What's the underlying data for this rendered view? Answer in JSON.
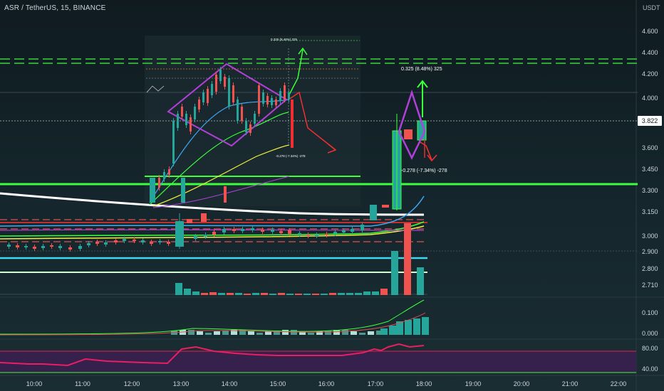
{
  "header": {
    "symbol": "ASR / TetherUS, 15, BINANCE"
  },
  "axis": {
    "unit": "USDT",
    "price_ticks": [
      {
        "value": 4.6,
        "label": "4.600"
      },
      {
        "value": 4.4,
        "label": "4.400"
      },
      {
        "value": 4.2,
        "label": "4.200"
      },
      {
        "value": 4.0,
        "label": "4.000"
      },
      {
        "value": 3.8,
        "label": "3.800"
      },
      {
        "value": 3.6,
        "label": "3.600"
      },
      {
        "value": 3.45,
        "label": "3.450"
      },
      {
        "value": 3.3,
        "label": "3.300"
      },
      {
        "value": 3.15,
        "label": "3.150"
      },
      {
        "value": 3.0,
        "label": "3.000"
      },
      {
        "value": 2.9,
        "label": "2.900"
      },
      {
        "value": 2.8,
        "label": "2.800"
      },
      {
        "value": 2.71,
        "label": "2.710"
      }
    ],
    "current_price": "3.822",
    "time_ticks": [
      "10:00",
      "11:00",
      "12:00",
      "13:00",
      "14:00",
      "15:00",
      "16:00",
      "17:00",
      "18:00",
      "19:00",
      "20:00",
      "21:00",
      "22:00"
    ],
    "indicator1_ticks": [
      "0.100",
      "0.000"
    ],
    "indicator2_ticks": [
      "80.00",
      "40.00"
    ]
  },
  "annotations": {
    "up_target": "0.325 (8.48%) 325",
    "down_target": "-0.278 (-7.34%) -278",
    "inset_up_target": "0.325 (8.48%) 325",
    "inset_down_target": "-0.278 (-7.34%) -278"
  },
  "colors": {
    "up_candle": "#26a69a",
    "down_candle": "#ef5350",
    "bright_green": "#3cff3c",
    "wedge": "#b040d8",
    "rsi": "#e91e63"
  }
}
